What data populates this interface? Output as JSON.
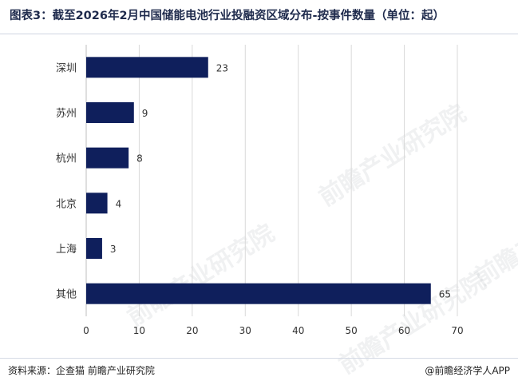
{
  "header": {
    "title": "图表3：截至2026年2月中国储能电池行业投融资区域分布-按事件数量（单位：起）"
  },
  "footer": {
    "source": "资料来源：企查猫 前瞻产业研究院",
    "credit": "@前瞻经济学人APP"
  },
  "watermark": "前瞻产业研究院",
  "colors": {
    "bar": "#0f1f5c",
    "grid": "#d9d9d9"
  },
  "chart_data": {
    "type": "bar",
    "orientation": "horizontal",
    "categories": [
      "深圳",
      "苏州",
      "杭州",
      "北京",
      "上海",
      "其他"
    ],
    "values": [
      23,
      9,
      8,
      4,
      3,
      65
    ],
    "xlim": [
      0,
      70
    ],
    "xticks": [
      0,
      10,
      20,
      30,
      40,
      50,
      60,
      70
    ],
    "grid": "vertical",
    "data_labels": true
  }
}
